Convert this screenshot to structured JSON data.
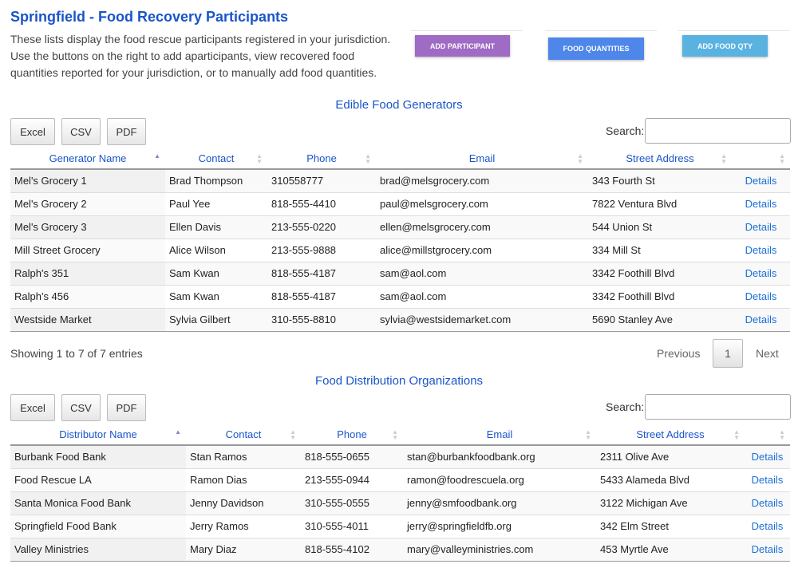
{
  "header": {
    "title": "Springfield  - Food Recovery Participants",
    "description": "These lists display the food rescue participants registered in your jurisdiction. Use the buttons on the right to add aparticipants, view recovered food quantities reported for your jurisdiction, or to manually add food quantities.",
    "buttons": {
      "add_participant": "ADD PARTICIPANT",
      "food_quantities": "FOOD QUANTITIES",
      "add_food_qty": "ADD FOOD QTY"
    },
    "colors": {
      "add_participant": "#9f6bc4",
      "food_quantities": "#4e86e9",
      "add_food_qty": "#5ab2e0"
    }
  },
  "generators": {
    "title": "Edible Food Generators",
    "export": [
      "Excel",
      "CSV",
      "PDF"
    ],
    "search_label": "Search:",
    "search_value": "",
    "columns": [
      "Generator Name",
      "Contact",
      "Phone",
      "Email",
      "Street Address",
      ""
    ],
    "rows": [
      [
        "Mel's Grocery 1",
        "Brad Thompson",
        "310558777",
        "brad@melsgrocery.com",
        "343 Fourth St",
        "Details"
      ],
      [
        "Mel's Grocery 2",
        "Paul Yee",
        "818-555-4410",
        "paul@melsgrocery.com",
        "7822 Ventura Blvd",
        "Details"
      ],
      [
        "Mel's Grocery 3",
        "Ellen Davis",
        "213-555-0220",
        "ellen@melsgrocery.com",
        "544 Union St",
        "Details"
      ],
      [
        "Mill Street Grocery",
        "Alice Wilson",
        "213-555-9888",
        "alice@millstgrocery.com",
        "334 Mill St",
        "Details"
      ],
      [
        "Ralph's 351",
        "Sam Kwan",
        "818-555-4187",
        "sam@aol.com",
        "3342 Foothill Blvd",
        "Details"
      ],
      [
        "Ralph's 456",
        "Sam Kwan",
        "818-555-4187",
        "sam@aol.com",
        "3342 Foothill Blvd",
        "Details"
      ],
      [
        "Westside Market",
        "Sylvia Gilbert",
        "310-555-8810",
        "sylvia@westsidemarket.com",
        "5690 Stanley Ave",
        "Details"
      ]
    ],
    "info": "Showing 1 to 7 of 7 entries",
    "pagination": {
      "previous": "Previous",
      "page": "1",
      "next": "Next"
    }
  },
  "distributors": {
    "title": "Food Distribution Organizations",
    "export": [
      "Excel",
      "CSV",
      "PDF"
    ],
    "search_label": "Search:",
    "search_value": "",
    "columns": [
      "Distributor Name",
      "Contact",
      "Phone",
      "Email",
      "Street Address",
      ""
    ],
    "rows": [
      [
        "Burbank Food Bank",
        "Stan Ramos",
        "818-555-0655",
        "stan@burbankfoodbank.org",
        "2311 Olive Ave",
        "Details"
      ],
      [
        "Food Rescue LA",
        "Ramon Dias",
        "213-555-0944",
        "ramon@foodrescuela.org",
        "5433 Alameda Blvd",
        "Details"
      ],
      [
        "Santa Monica Food Bank",
        "Jenny Davidson",
        "310-555-0555",
        "jenny@smfoodbank.org",
        "3122 Michigan Ave",
        "Details"
      ],
      [
        "Springfield Food Bank",
        "Jerry Ramos",
        "310-555-4011",
        "jerry@springfieldfb.org",
        "342 Elm Street",
        "Details"
      ],
      [
        "Valley Ministries",
        "Mary Diaz",
        "818-555-4102",
        "mary@valleyministries.com",
        "453 Myrtle Ave",
        "Details"
      ]
    ]
  }
}
